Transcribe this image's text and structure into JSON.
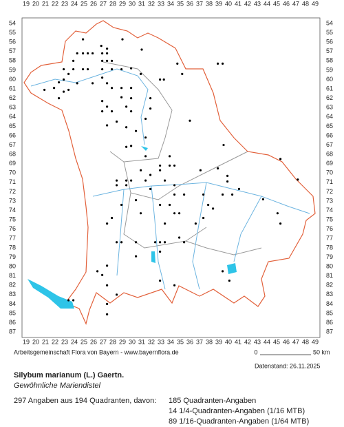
{
  "map": {
    "x_labels": [
      19,
      20,
      21,
      22,
      23,
      24,
      25,
      26,
      27,
      28,
      29,
      30,
      31,
      32,
      33,
      34,
      35,
      36,
      37,
      38,
      39,
      40,
      41,
      42,
      43,
      44,
      45,
      46,
      47,
      48,
      49
    ],
    "y_labels": [
      54,
      55,
      56,
      57,
      58,
      59,
      60,
      61,
      62,
      63,
      64,
      65,
      66,
      67,
      68,
      69,
      70,
      71,
      72,
      73,
      74,
      75,
      76,
      77,
      78,
      79,
      80,
      81,
      82,
      83,
      84,
      85,
      86,
      87
    ],
    "points": [
      [
        24.9,
        55.7
      ],
      [
        26.8,
        56.4
      ],
      [
        27.4,
        56.7
      ],
      [
        29.0,
        55.7
      ],
      [
        24.3,
        57.2
      ],
      [
        24.9,
        57.2
      ],
      [
        25.4,
        57.2
      ],
      [
        25.9,
        57.2
      ],
      [
        26.9,
        57.2
      ],
      [
        27.4,
        57.2
      ],
      [
        23.9,
        58.0
      ],
      [
        26.9,
        58.0
      ],
      [
        27.4,
        58.0
      ],
      [
        27.9,
        58.0
      ],
      [
        31.0,
        56.8
      ],
      [
        22.9,
        58.9
      ],
      [
        23.9,
        58.9
      ],
      [
        24.9,
        58.9
      ],
      [
        25.4,
        58.9
      ],
      [
        26.9,
        58.9
      ],
      [
        27.9,
        58.9
      ],
      [
        23.4,
        59.4
      ],
      [
        22.9,
        60.0
      ],
      [
        22.4,
        60.3
      ],
      [
        24.3,
        60.4
      ],
      [
        25.9,
        60.4
      ],
      [
        26.9,
        59.8
      ],
      [
        28.9,
        58.9
      ],
      [
        29.9,
        58.8
      ],
      [
        34.7,
        58.3
      ],
      [
        35.2,
        59.4
      ],
      [
        39.4,
        58.3
      ],
      [
        38.9,
        58.3
      ],
      [
        20.9,
        61.1
      ],
      [
        21.9,
        60.9
      ],
      [
        22.9,
        61.3
      ],
      [
        23.4,
        61.1
      ],
      [
        22.4,
        62.0
      ],
      [
        27.4,
        60.4
      ],
      [
        27.9,
        60.9
      ],
      [
        28.9,
        60.9
      ],
      [
        29.9,
        60.9
      ],
      [
        30.9,
        59.4
      ],
      [
        32.9,
        60.0
      ],
      [
        33.3,
        60.0
      ],
      [
        26.9,
        62.3
      ],
      [
        27.4,
        62.9
      ],
      [
        28.9,
        61.9
      ],
      [
        29.9,
        62.0
      ],
      [
        31.9,
        62.0
      ],
      [
        29.4,
        62.9
      ],
      [
        29.9,
        63.4
      ],
      [
        26.9,
        63.4
      ],
      [
        27.9,
        63.4
      ],
      [
        31.9,
        63.1
      ],
      [
        31.4,
        64.2
      ],
      [
        28.4,
        64.5
      ],
      [
        27.4,
        64.9
      ],
      [
        29.4,
        65.1
      ],
      [
        30.4,
        65.5
      ],
      [
        36.0,
        64.4
      ],
      [
        31.4,
        66.2
      ],
      [
        29.9,
        67.1
      ],
      [
        29.4,
        67.2
      ],
      [
        31.4,
        68.2
      ],
      [
        33.9,
        68.2
      ],
      [
        39.5,
        67.0
      ],
      [
        32.9,
        69.2
      ],
      [
        33.9,
        69.2
      ],
      [
        34.4,
        69.2
      ],
      [
        32.9,
        69.7
      ],
      [
        30.9,
        69.7
      ],
      [
        31.9,
        70.2
      ],
      [
        29.4,
        70.8
      ],
      [
        29.9,
        70.8
      ],
      [
        28.4,
        70.8
      ],
      [
        31.4,
        70.8
      ],
      [
        33.4,
        70.8
      ],
      [
        28.4,
        71.3
      ],
      [
        29.4,
        71.3
      ],
      [
        31.9,
        71.7
      ],
      [
        34.4,
        71.3
      ],
      [
        38.9,
        69.5
      ],
      [
        39.9,
        70.3
      ],
      [
        39.9,
        70.9
      ],
      [
        41.1,
        71.7
      ],
      [
        37.1,
        69.7
      ],
      [
        45.4,
        68.5
      ],
      [
        47.2,
        70.7
      ],
      [
        34.4,
        72.3
      ],
      [
        35.4,
        72.3
      ],
      [
        37.4,
        72.3
      ],
      [
        39.4,
        72.3
      ],
      [
        40.4,
        72.3
      ],
      [
        30.4,
        72.9
      ],
      [
        28.9,
        73.4
      ],
      [
        32.9,
        73.4
      ],
      [
        33.9,
        73.4
      ],
      [
        37.9,
        73.4
      ],
      [
        38.4,
        73.8
      ],
      [
        30.9,
        74.3
      ],
      [
        34.4,
        74.3
      ],
      [
        34.9,
        74.3
      ],
      [
        37.4,
        74.8
      ],
      [
        36.6,
        75.4
      ],
      [
        27.4,
        75.4
      ],
      [
        27.9,
        74.8
      ],
      [
        33.4,
        75.4
      ],
      [
        45.1,
        74.3
      ],
      [
        45.4,
        75.4
      ],
      [
        43.6,
        72.8
      ],
      [
        28.4,
        77.4
      ],
      [
        28.9,
        77.4
      ],
      [
        30.4,
        77.4
      ],
      [
        32.4,
        77.4
      ],
      [
        32.9,
        77.4
      ],
      [
        33.4,
        77.4
      ],
      [
        34.9,
        76.9
      ],
      [
        35.4,
        77.4
      ],
      [
        32.9,
        78.4
      ],
      [
        30.4,
        78.9
      ],
      [
        27.4,
        79.9
      ],
      [
        26.9,
        80.9
      ],
      [
        26.4,
        80.5
      ],
      [
        40.1,
        81.5
      ],
      [
        39.4,
        80.5
      ],
      [
        34.4,
        82.0
      ],
      [
        27.4,
        82.0
      ],
      [
        28.4,
        83.0
      ],
      [
        27.4,
        84.0
      ],
      [
        23.4,
        83.6
      ],
      [
        23.9,
        83.6
      ],
      [
        27.4,
        85.1
      ],
      [
        32.9,
        81.5
      ]
    ]
  },
  "credit": "Arbeitsgemeinschaft Flora von Bayern - www.bayernflora.de",
  "scale": {
    "zero": "0",
    "label": "50 km"
  },
  "date": "Datenstand: 26.11.2025",
  "title": "Silybum marianum (L.) Gaertn.",
  "subtitle": "Gewöhnliche Mariendistel",
  "summary": "297 Angaben aus 194 Quadranten, davon:",
  "counts": [
    "185 Quadranten-Angaben",
    "14 1/4-Quadranten-Angaben (1/16 MTB)",
    "89 1/16-Quadranten-Angaben (1/64 MTB)"
  ]
}
